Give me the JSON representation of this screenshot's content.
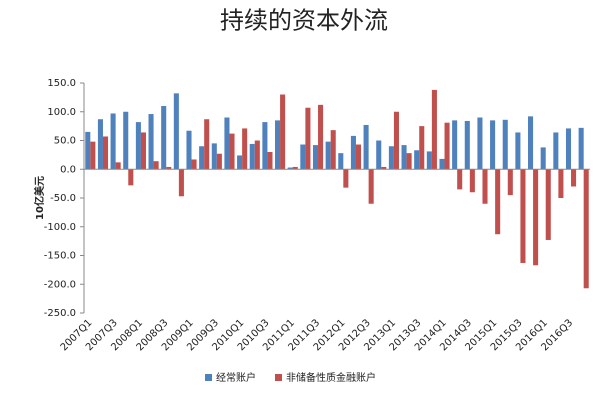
{
  "chart_data": {
    "type": "bar",
    "title": "持续的资本外流",
    "y_label": "10亿美元",
    "categories": [
      "2007Q1",
      null,
      "2007Q3",
      null,
      "2008Q1",
      null,
      "2008Q3",
      null,
      "2009Q1",
      null,
      "2009Q3",
      null,
      "2010Q1",
      null,
      "2010Q3",
      null,
      "2011Q1",
      null,
      "2011Q3",
      null,
      "2012Q1",
      null,
      "2012Q3",
      null,
      "2013Q1",
      null,
      "2013Q3",
      null,
      "2014Q1",
      null,
      "2014Q3",
      null,
      "2015Q1",
      null,
      "2015Q3",
      null,
      "2016Q1",
      null,
      "2016Q3",
      null
    ],
    "series": [
      {
        "name": "经常账户",
        "color": "#4f81bd",
        "values": [
          65,
          87,
          97,
          100,
          82,
          96,
          110,
          132,
          67,
          40,
          45,
          90,
          24,
          44,
          82,
          85,
          3,
          43,
          42,
          48,
          28,
          58,
          77,
          50,
          40,
          42,
          33,
          31,
          18,
          85,
          84,
          90,
          85,
          86,
          64,
          92,
          38,
          64,
          71,
          72
        ]
      },
      {
        "name": "非储备性质金融账户",
        "color": "#c0504d",
        "values": [
          48,
          57,
          12,
          -28,
          64,
          14,
          4,
          -47,
          17,
          87,
          27,
          62,
          71,
          50,
          30,
          130,
          4,
          107,
          112,
          68,
          -32,
          43,
          -60,
          4,
          100,
          28,
          75,
          138,
          81,
          -35,
          -40,
          -60,
          -113,
          -45,
          -163,
          -167,
          -123,
          -50,
          -30,
          -207
        ]
      }
    ],
    "ylim": [
      -250,
      150
    ],
    "yticks": [
      {
        "value": -250,
        "label": "-250.0"
      },
      {
        "value": -200,
        "label": "-200.0"
      },
      {
        "value": -150,
        "label": "-150.0"
      },
      {
        "value": -100,
        "label": "-100.0"
      },
      {
        "value": -50,
        "label": "-50.0"
      },
      {
        "value": 0,
        "label": "0.0"
      },
      {
        "value": 50,
        "label": "50.0"
      },
      {
        "value": 100,
        "label": "100.0"
      },
      {
        "value": 150,
        "label": "150.0"
      }
    ],
    "legend": "bottom"
  }
}
